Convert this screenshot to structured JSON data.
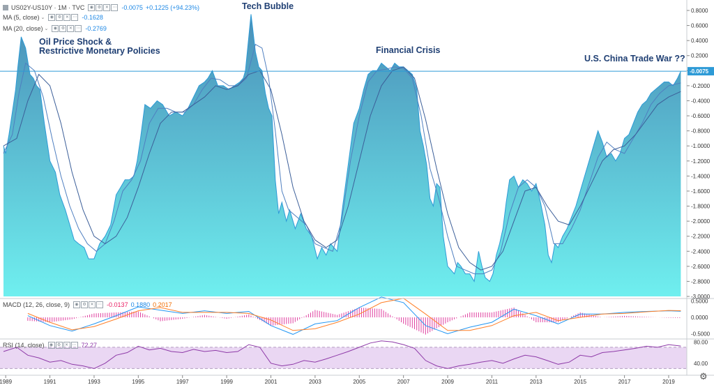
{
  "colors": {
    "fill_top": "#4a8fb8",
    "fill_bottom": "#6fefef",
    "main_line": "#2d9ad6",
    "ma5": "#4f7fc0",
    "ma20": "#3c5f99",
    "macd": "#2196f3",
    "signal": "#ff7f27",
    "hist": "#e040a0",
    "rsi": "#8e3aa8",
    "rsi_band": "#ead7f3",
    "axis_text": "#333333",
    "current_line": "#2d9ad6"
  },
  "header": {
    "symbol": "US02Y-US10Y · 1M · TVC",
    "last_value": "-0.0075",
    "change": "+0.1225 (+94.23%)",
    "ma5_label": "MA (5, close)",
    "ma5_value": "-0.1628",
    "ma20_label": "MA (20, close)",
    "ma20_value": "-0.2769"
  },
  "annotations": {
    "oil": "Oil Price Shock &\nRestrictive Monetary Policies",
    "tech": "Tech Bubble",
    "financial": "Financial Crisis",
    "trade": "U.S. China Trade War ??"
  },
  "macd_legend": {
    "label": "MACD (12, 26, close, 9)",
    "hist_value": "-0.0137",
    "macd_value": "0.1880",
    "signal_value": "0.2017"
  },
  "rsi_legend": {
    "label": "RSI (14, close)",
    "value": "72.27"
  },
  "price_axis": {
    "ticks": [
      "0.8000",
      "0.6000",
      "0.4000",
      "0.2000",
      "0.0000",
      "-0.2000",
      "-0.4000",
      "-0.6000",
      "-0.8000",
      "-1.0000",
      "-1.2000",
      "-1.4000",
      "-1.6000",
      "-1.8000",
      "-2.0000",
      "-2.2000",
      "-2.4000",
      "-2.6000",
      "-2.8000",
      "-3.0000"
    ],
    "current": "-0.0075"
  },
  "macd_axis": {
    "ticks": [
      "0.5000",
      "0.0000",
      "-0.5000"
    ]
  },
  "rsi_axis": {
    "ticks": [
      "80.00",
      "40.00"
    ]
  },
  "time_axis": {
    "ticks": [
      "1989",
      "1991",
      "1993",
      "1995",
      "1997",
      "1999",
      "2001",
      "2003",
      "2005",
      "2007",
      "2009",
      "2011",
      "2013",
      "2015",
      "2017",
      "2019"
    ]
  },
  "chart_data": {
    "type": "area",
    "title": "US02Y-US10Y · 1M · TVC",
    "x_range": [
      1988.9,
      2019.6
    ],
    "ylim": [
      -3.0,
      0.8
    ],
    "series": [
      {
        "name": "US02Y-US10Y",
        "x": [
          1988.9,
          1989.0,
          1989.15,
          1989.3,
          1989.45,
          1989.55,
          1989.7,
          1989.9,
          1990.1,
          1990.25,
          1990.4,
          1990.55,
          1990.75,
          1991.0,
          1991.25,
          1991.45,
          1991.7,
          1991.9,
          1992.1,
          1992.3,
          1992.55,
          1992.75,
          1993.0,
          1993.25,
          1993.5,
          1993.75,
          1994.0,
          1994.2,
          1994.4,
          1994.6,
          1994.8,
          1994.95,
          1995.1,
          1995.3,
          1995.55,
          1995.85,
          1996.1,
          1996.4,
          1996.7,
          1997.0,
          1997.25,
          1997.5,
          1997.75,
          1998.0,
          1998.15,
          1998.35,
          1998.6,
          1998.85,
          1999.1,
          1999.35,
          1999.6,
          1999.75,
          1999.85,
          2000.0,
          2000.1,
          2000.3,
          2000.45,
          2000.6,
          2000.75,
          2000.9,
          2001.05,
          2001.2,
          2001.35,
          2001.5,
          2001.7,
          2001.85,
          2002.1,
          2002.35,
          2002.6,
          2002.85,
          2003.1,
          2003.3,
          2003.5,
          2003.7,
          2004.0,
          2004.25,
          2004.5,
          2004.75,
          2005.0,
          2005.2,
          2005.4,
          2005.6,
          2005.8,
          2006.0,
          2006.2,
          2006.4,
          2006.6,
          2006.8,
          2007.0,
          2007.2,
          2007.4,
          2007.6,
          2007.75,
          2007.9,
          2008.05,
          2008.2,
          2008.35,
          2008.5,
          2008.65,
          2008.8,
          2009.0,
          2009.15,
          2009.3,
          2009.45,
          2009.6,
          2009.8,
          2010.0,
          2010.2,
          2010.4,
          2010.55,
          2010.7,
          2010.9,
          2011.05,
          2011.2,
          2011.35,
          2011.5,
          2011.65,
          2011.8,
          2012.0,
          2012.2,
          2012.4,
          2012.6,
          2012.8,
          2013.0,
          2013.2,
          2013.4,
          2013.55,
          2013.7,
          2013.85,
          2014.0,
          2014.2,
          2014.4,
          2014.6,
          2014.8,
          2015.0,
          2015.2,
          2015.4,
          2015.6,
          2015.8,
          2016.0,
          2016.2,
          2016.4,
          2016.6,
          2016.8,
          2017.0,
          2017.2,
          2017.4,
          2017.6,
          2017.8,
          2018.0,
          2018.2,
          2018.4,
          2018.6,
          2018.8,
          2019.0,
          2019.2,
          2019.4,
          2019.55
        ],
        "values": [
          -1.0,
          -1.1,
          -0.85,
          -0.55,
          -0.25,
          0.05,
          0.45,
          0.3,
          -0.05,
          -0.1,
          -0.2,
          -0.25,
          -0.7,
          -1.2,
          -1.35,
          -1.65,
          -1.85,
          -2.05,
          -2.25,
          -2.3,
          -2.35,
          -2.5,
          -2.5,
          -2.3,
          -2.2,
          -2.05,
          -1.65,
          -1.55,
          -1.45,
          -1.45,
          -1.4,
          -1.2,
          -0.9,
          -0.45,
          -0.5,
          -0.4,
          -0.45,
          -0.6,
          -0.55,
          -0.6,
          -0.5,
          -0.35,
          -0.2,
          -0.15,
          -0.1,
          0.0,
          -0.2,
          -0.2,
          -0.25,
          -0.2,
          -0.15,
          -0.1,
          0.0,
          0.45,
          0.75,
          0.25,
          0.05,
          0.0,
          -0.3,
          -0.5,
          -0.6,
          -1.45,
          -1.9,
          -1.75,
          -2.0,
          -1.85,
          -2.1,
          -1.9,
          -2.1,
          -2.2,
          -2.5,
          -2.35,
          -2.45,
          -2.3,
          -2.4,
          -1.8,
          -1.25,
          -0.7,
          -0.5,
          -0.25,
          -0.05,
          0.0,
          0.0,
          0.1,
          0.05,
          0.0,
          0.1,
          0.05,
          0.05,
          0.0,
          -0.05,
          -0.25,
          -0.8,
          -1.0,
          -1.25,
          -1.7,
          -1.8,
          -1.5,
          -1.55,
          -2.2,
          -2.6,
          -2.65,
          -2.7,
          -2.55,
          -2.6,
          -2.7,
          -2.7,
          -2.8,
          -2.4,
          -2.6,
          -2.75,
          -2.8,
          -2.7,
          -2.45,
          -2.3,
          -2.1,
          -1.75,
          -1.45,
          -1.4,
          -1.55,
          -1.45,
          -1.5,
          -1.6,
          -1.5,
          -1.75,
          -2.05,
          -2.45,
          -2.55,
          -2.3,
          -2.35,
          -2.2,
          -2.1,
          -1.95,
          -1.8,
          -1.6,
          -1.4,
          -1.2,
          -1.0,
          -0.8,
          -0.95,
          -1.15,
          -1.1,
          -1.2,
          -1.1,
          -0.9,
          -0.85,
          -0.7,
          -0.55,
          -0.45,
          -0.4,
          -0.3,
          -0.25,
          -0.2,
          -0.15,
          -0.15,
          -0.2,
          -0.1,
          -0.0075
        ]
      },
      {
        "name": "MA (5, close)",
        "x": [
          1988.9,
          1989.3,
          1989.6,
          1989.9,
          1990.3,
          1990.7,
          1991.1,
          1991.5,
          1991.9,
          1992.3,
          1992.7,
          1993.1,
          1993.5,
          1993.9,
          1994.3,
          1994.7,
          1995.1,
          1995.5,
          1995.9,
          1996.3,
          1996.7,
          1997.1,
          1997.5,
          1997.9,
          1998.3,
          1998.7,
          1999.1,
          1999.5,
          1999.9,
          2000.3,
          2000.6,
          2000.9,
          2001.2,
          2001.5,
          2001.8,
          2002.2,
          2002.6,
          2003.0,
          2003.4,
          2003.8,
          2004.2,
          2004.6,
          2005.0,
          2005.4,
          2005.8,
          2006.2,
          2006.6,
          2007.0,
          2007.4,
          2007.8,
          2008.2,
          2008.6,
          2009.0,
          2009.4,
          2009.8,
          2010.2,
          2010.6,
          2011.0,
          2011.4,
          2011.8,
          2012.2,
          2012.6,
          2013.0,
          2013.4,
          2013.8,
          2014.2,
          2014.6,
          2015.0,
          2015.4,
          2015.8,
          2016.2,
          2016.6,
          2017.0,
          2017.4,
          2017.8,
          2018.2,
          2018.6,
          2019.0,
          2019.55
        ],
        "values": [
          -1.1,
          -0.85,
          -0.3,
          0.1,
          0.0,
          -0.35,
          -0.9,
          -1.4,
          -1.8,
          -2.1,
          -2.3,
          -2.4,
          -2.3,
          -2.0,
          -1.6,
          -1.45,
          -1.2,
          -0.7,
          -0.5,
          -0.5,
          -0.55,
          -0.55,
          -0.45,
          -0.25,
          -0.1,
          -0.12,
          -0.2,
          -0.2,
          -0.1,
          0.35,
          0.3,
          -0.1,
          -0.8,
          -1.6,
          -1.85,
          -1.95,
          -2.05,
          -2.3,
          -2.35,
          -2.4,
          -2.0,
          -1.2,
          -0.6,
          -0.15,
          0.0,
          0.02,
          0.05,
          0.03,
          -0.1,
          -0.6,
          -1.3,
          -1.7,
          -2.2,
          -2.6,
          -2.65,
          -2.7,
          -2.7,
          -2.65,
          -2.4,
          -1.9,
          -1.55,
          -1.45,
          -1.55,
          -1.8,
          -2.3,
          -2.3,
          -2.1,
          -1.85,
          -1.5,
          -1.15,
          -0.95,
          -1.05,
          -1.1,
          -0.9,
          -0.7,
          -0.45,
          -0.3,
          -0.2,
          -0.1628
        ]
      },
      {
        "name": "MA (20, close)",
        "x": [
          1988.9,
          1989.5,
          1990.0,
          1990.5,
          1991.0,
          1991.5,
          1992.0,
          1992.5,
          1993.0,
          1993.5,
          1994.0,
          1994.5,
          1995.0,
          1995.5,
          1996.0,
          1996.5,
          1997.0,
          1997.5,
          1998.0,
          1998.5,
          1999.0,
          1999.5,
          2000.0,
          2000.5,
          2001.0,
          2001.5,
          2002.0,
          2002.5,
          2003.0,
          2003.5,
          2004.0,
          2004.5,
          2005.0,
          2005.5,
          2006.0,
          2006.5,
          2007.0,
          2007.5,
          2008.0,
          2008.5,
          2009.0,
          2009.5,
          2010.0,
          2010.5,
          2011.0,
          2011.5,
          2012.0,
          2012.5,
          2013.0,
          2013.5,
          2014.0,
          2014.5,
          2015.0,
          2015.5,
          2016.0,
          2016.5,
          2017.0,
          2017.5,
          2018.0,
          2018.5,
          2019.0,
          2019.55
        ],
        "values": [
          -1.0,
          -0.9,
          -0.4,
          -0.05,
          -0.2,
          -0.7,
          -1.35,
          -1.85,
          -2.2,
          -2.3,
          -2.2,
          -1.95,
          -1.55,
          -1.1,
          -0.7,
          -0.55,
          -0.55,
          -0.45,
          -0.35,
          -0.2,
          -0.25,
          -0.2,
          -0.05,
          0.0,
          -0.25,
          -0.85,
          -1.55,
          -2.0,
          -2.25,
          -2.35,
          -2.25,
          -1.8,
          -1.2,
          -0.6,
          -0.2,
          0.0,
          0.05,
          -0.1,
          -0.65,
          -1.3,
          -1.9,
          -2.35,
          -2.55,
          -2.65,
          -2.6,
          -2.4,
          -2.0,
          -1.6,
          -1.55,
          -1.8,
          -2.0,
          -2.05,
          -1.8,
          -1.5,
          -1.2,
          -1.05,
          -1.0,
          -0.85,
          -0.65,
          -0.45,
          -0.35,
          -0.2769
        ]
      },
      {
        "name": "MACD",
        "x": [
          1990.0,
          1991.0,
          1992.0,
          1993.0,
          1994.0,
          1995.0,
          1996.0,
          1997.0,
          1998.0,
          1999.0,
          2000.0,
          2001.0,
          2002.0,
          2003.0,
          2004.0,
          2005.0,
          2006.0,
          2007.0,
          2008.0,
          2009.0,
          2010.0,
          2011.0,
          2012.0,
          2013.0,
          2014.0,
          2015.0,
          2016.0,
          2017.0,
          2018.0,
          2019.0,
          2019.55
        ],
        "values": [
          0.05,
          -0.25,
          -0.42,
          -0.2,
          0.05,
          0.32,
          0.22,
          0.12,
          0.2,
          0.12,
          0.18,
          -0.25,
          -0.52,
          -0.2,
          -0.1,
          0.3,
          0.62,
          0.45,
          -0.25,
          -0.5,
          -0.3,
          -0.15,
          0.25,
          0.05,
          -0.2,
          0.1,
          0.1,
          0.15,
          0.18,
          0.2,
          0.188
        ]
      },
      {
        "name": "Signal",
        "x": [
          1990.0,
          1991.0,
          1992.0,
          1993.0,
          1994.0,
          1995.0,
          1996.0,
          1997.0,
          1998.0,
          1999.0,
          2000.0,
          2001.0,
          2002.0,
          2003.0,
          2004.0,
          2005.0,
          2006.0,
          2007.0,
          2008.0,
          2009.0,
          2010.0,
          2011.0,
          2012.0,
          2013.0,
          2014.0,
          2015.0,
          2016.0,
          2017.0,
          2018.0,
          2019.0,
          2019.55
        ],
        "values": [
          0.12,
          -0.15,
          -0.38,
          -0.28,
          -0.05,
          0.2,
          0.3,
          0.15,
          0.15,
          0.15,
          0.12,
          -0.08,
          -0.4,
          -0.35,
          -0.15,
          0.1,
          0.45,
          0.58,
          0.1,
          -0.4,
          -0.4,
          -0.25,
          0.05,
          0.15,
          -0.1,
          0.0,
          0.1,
          0.12,
          0.17,
          0.21,
          0.2017
        ]
      },
      {
        "name": "RSI",
        "x": [
          1988.9,
          1989.5,
          1990.0,
          1990.5,
          1991.0,
          1991.5,
          1992.0,
          1992.5,
          1993.0,
          1993.5,
          1994.0,
          1994.5,
          1995.0,
          1995.5,
          1996.0,
          1996.5,
          1997.0,
          1997.5,
          1998.0,
          1998.5,
          1999.0,
          1999.5,
          2000.0,
          2000.5,
          2001.0,
          2001.5,
          2002.0,
          2002.5,
          2003.0,
          2003.5,
          2004.0,
          2004.5,
          2005.0,
          2005.5,
          2006.0,
          2006.5,
          2007.0,
          2007.5,
          2008.0,
          2008.5,
          2009.0,
          2009.5,
          2010.0,
          2010.5,
          2011.0,
          2011.5,
          2012.0,
          2012.5,
          2013.0,
          2013.5,
          2014.0,
          2014.5,
          2015.0,
          2015.5,
          2016.0,
          2016.5,
          2017.0,
          2017.5,
          2018.0,
          2018.5,
          2019.0,
          2019.55
        ],
        "values": [
          62,
          70,
          55,
          50,
          42,
          45,
          38,
          35,
          30,
          40,
          55,
          60,
          72,
          65,
          68,
          62,
          60,
          66,
          62,
          64,
          60,
          62,
          75,
          70,
          40,
          35,
          38,
          45,
          42,
          48,
          55,
          62,
          70,
          78,
          82,
          80,
          75,
          68,
          45,
          35,
          30,
          35,
          38,
          42,
          45,
          40,
          48,
          55,
          52,
          45,
          38,
          42,
          55,
          52,
          60,
          62,
          65,
          68,
          72,
          70,
          75,
          72.27
        ]
      }
    ]
  }
}
